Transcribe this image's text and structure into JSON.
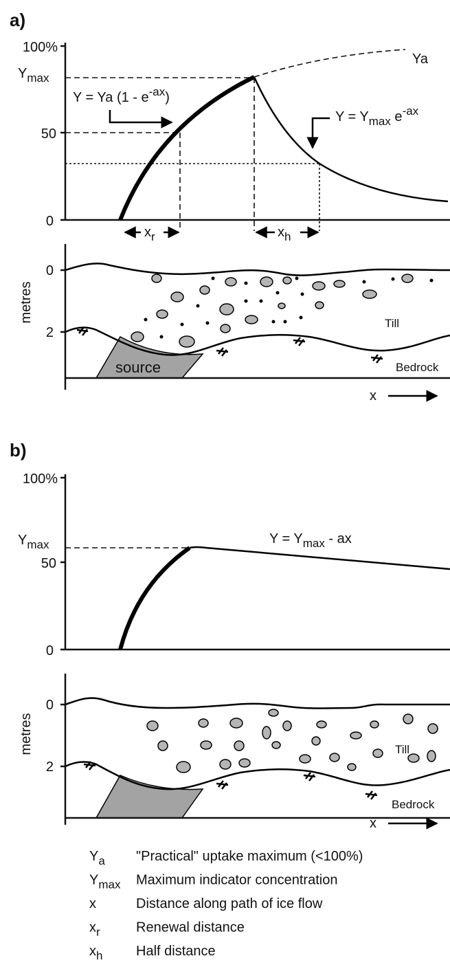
{
  "panel_a": {
    "label": "a)",
    "graph": {
      "tick_100": "100%",
      "tick_ymax": [
        "Y",
        "max"
      ],
      "tick_50": "50",
      "tick_0": "0",
      "ya_label": "Ya",
      "uptake_equation": [
        "Y = Ya (1 - e",
        "-ax",
        ")"
      ],
      "decay_equation": [
        "Y = Y",
        "max",
        " e",
        "-ax"
      ],
      "renewal_label": [
        "x",
        "r"
      ],
      "half_label": [
        "x",
        "h"
      ]
    },
    "section": {
      "depth_0": "0",
      "depth_2": "2",
      "axis_label": "metres",
      "till": "Till",
      "bedrock": "Bedrock",
      "source": "source",
      "x_label": "x"
    }
  },
  "panel_b": {
    "label": "b)",
    "graph": {
      "tick_100": "100%",
      "tick_ymax": [
        "Y",
        "max"
      ],
      "tick_50": "50",
      "tick_0": "0",
      "linear_equation": [
        "Y = Y",
        "max",
        " - ax"
      ]
    },
    "section": {
      "depth_0": "0",
      "depth_2": "2",
      "axis_label": "metres",
      "till": "Till",
      "bedrock": "Bedrock",
      "x_label": "x"
    }
  },
  "legend": [
    {
      "symbol": [
        "Y",
        "a"
      ],
      "text": "\"Practical\" uptake maximum (<100%)"
    },
    {
      "symbol": [
        "Y",
        "max"
      ],
      "text": "Maximum indicator concentration"
    },
    {
      "symbol": [
        "x",
        ""
      ],
      "text": "Distance along path of ice flow"
    },
    {
      "symbol": [
        "x",
        "r"
      ],
      "text": "Renewal distance"
    },
    {
      "symbol": [
        "x",
        "h"
      ],
      "text": "Half distance"
    }
  ]
}
